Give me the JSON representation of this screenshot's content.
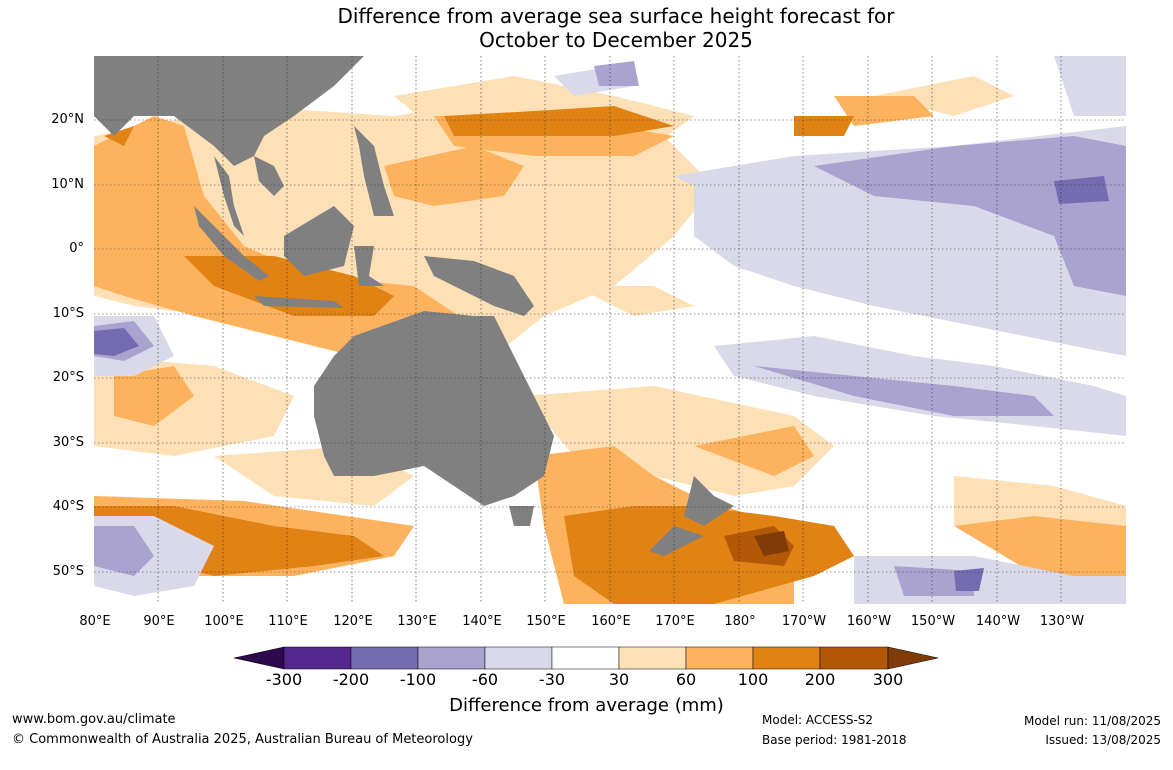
{
  "title": {
    "line1": "Difference from average sea surface height forecast for",
    "line2": "October to December 2025"
  },
  "map": {
    "lat_labels": [
      "20°N",
      "10°N",
      "0°",
      "10°S",
      "20°S",
      "30°S",
      "40°S",
      "50°S"
    ],
    "lon_labels": [
      "80°E",
      "90°E",
      "100°E",
      "110°E",
      "120°E",
      "130°E",
      "140°E",
      "150°E",
      "160°E",
      "170°E",
      "180°",
      "170°W",
      "160°W",
      "150°W",
      "140°W",
      "130°W"
    ],
    "land_color": "#808080",
    "ocean_color": "#ffffff"
  },
  "colorbar": {
    "title": "Difference from average (mm)",
    "ticks": [
      "-300",
      "-200",
      "-100",
      "-60",
      "-30",
      "30",
      "60",
      "100",
      "200",
      "300"
    ],
    "colors": [
      "#2d0a4e",
      "#54278f",
      "#756bb1",
      "#aaa3cf",
      "#d9d9ea",
      "#ffffff",
      "#fee0b6",
      "#fdb35e",
      "#e08214",
      "#b35806",
      "#7f3b08"
    ]
  },
  "footer": {
    "url": "www.bom.gov.au/climate",
    "copyright": "© Commonwealth of Australia 2025, Australian Bureau of Meteorology",
    "model": "Model: ACCESS-S2",
    "base_period": "Base period: 1981-2018",
    "model_run": "Model run: 11/08/2025",
    "issued": "Issued: 13/08/2025"
  }
}
